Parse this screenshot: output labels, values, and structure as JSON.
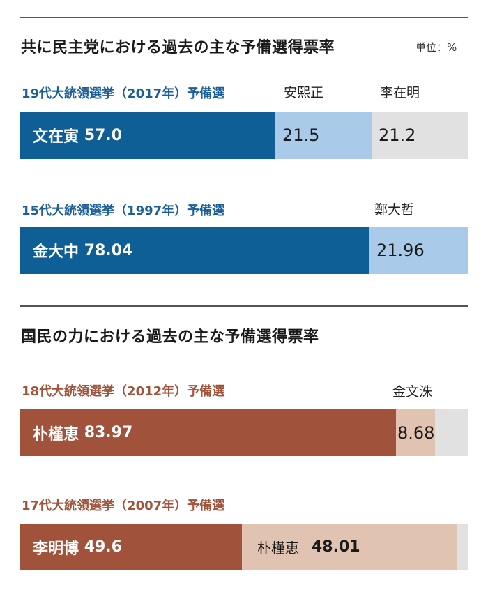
{
  "colors": {
    "blue_main": "#0f5f97",
    "blue_light": "#a9cbe9",
    "brown_main": "#a0533a",
    "brown_light": "#e0c3b1",
    "track": "#e1e1e1",
    "blue_text": "#1c5f98",
    "brown_text": "#a0533a"
  },
  "header1": {
    "title": "共に民主党における過去の主な予備選得票率",
    "unit": "単位：%"
  },
  "header2": {
    "title": "国民の力における過去の主な予備選得票率"
  },
  "chart_data": [
    {
      "type": "bar",
      "stacked": true,
      "orientation": "horizontal",
      "title": "19代大統領選挙（2017年）予備選",
      "unit": "%",
      "series": [
        {
          "name": "文在寅",
          "value": 57.0,
          "label": "57.0",
          "color": "#0f5f97"
        },
        {
          "name": "安熙正",
          "value": 21.5,
          "label": "21.5",
          "color": "#a9cbe9"
        },
        {
          "name": "李在明",
          "value": 21.2,
          "label": "21.2",
          "color": "#e1e1e1"
        }
      ]
    },
    {
      "type": "bar",
      "stacked": true,
      "orientation": "horizontal",
      "title": "15代大統領選挙（1997年）予備選",
      "unit": "%",
      "series": [
        {
          "name": "金大中",
          "value": 78.04,
          "label": "78.04",
          "color": "#0f5f97"
        },
        {
          "name": "鄭大哲",
          "value": 21.96,
          "label": "21.96",
          "color": "#a9cbe9"
        }
      ]
    },
    {
      "type": "bar",
      "stacked": true,
      "orientation": "horizontal",
      "title": "18代大統領選挙（2012年）予備選",
      "unit": "%",
      "series": [
        {
          "name": "朴槿恵",
          "value": 83.97,
          "label": "83.97",
          "color": "#a0533a"
        },
        {
          "name": "金文洙",
          "value": 8.68,
          "label": "8.68",
          "color": "#e0c3b1"
        }
      ]
    },
    {
      "type": "bar",
      "stacked": true,
      "orientation": "horizontal",
      "title": "17代大統領選挙（2007年）予備選",
      "unit": "%",
      "series": [
        {
          "name": "李明博",
          "value": 49.6,
          "label": "49.6",
          "color": "#a0533a"
        },
        {
          "name": "朴槿恵",
          "value": 48.01,
          "label": "48.01",
          "color": "#e0c3b1"
        }
      ]
    }
  ]
}
